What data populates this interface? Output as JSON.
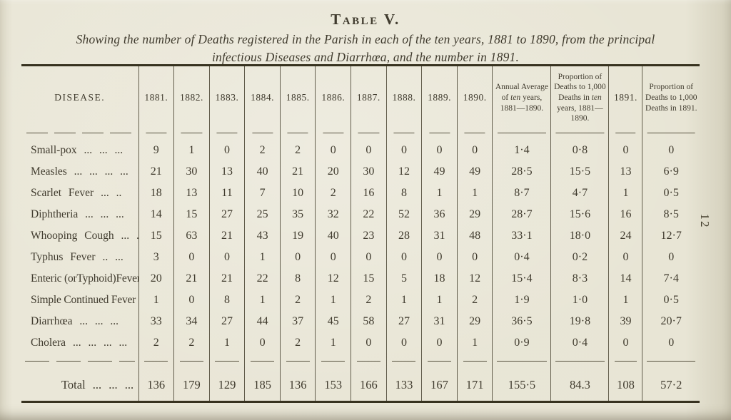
{
  "page_number": "12",
  "title": "Table V.",
  "subtitle": {
    "line1": "Showing the number of Deaths registered in the Parish in each of the ten years, 1881 to 1890, from the principal",
    "line2": "infectious Diseases and Diarrhœa, and the number in 1891."
  },
  "colors": {
    "paper": "#e8e5d5",
    "ink": "#403b2e",
    "rule": "#37321f"
  },
  "table": {
    "columns": [
      {
        "label": "DISEASE.",
        "type": "disease"
      },
      {
        "label": "1881.",
        "type": "year"
      },
      {
        "label": "1882.",
        "type": "year"
      },
      {
        "label": "1883.",
        "type": "year"
      },
      {
        "label": "1884.",
        "type": "year"
      },
      {
        "label": "1885.",
        "type": "year"
      },
      {
        "label": "1886.",
        "type": "year"
      },
      {
        "label": "1887.",
        "type": "year"
      },
      {
        "label": "1888.",
        "type": "year"
      },
      {
        "label": "1889.",
        "type": "year"
      },
      {
        "label": "1890.",
        "type": "year"
      },
      {
        "label": "Annual Average of ten years, 1881—1890.",
        "type": "avg"
      },
      {
        "label": "Proportion of Deaths to 1,000 Deaths in ten years, 1881—1890.",
        "type": "prop"
      },
      {
        "label": "1891.",
        "type": "y91"
      },
      {
        "label": "Proportion of Deaths to 1,000 Deaths in 1891.",
        "type": "prop91"
      }
    ],
    "rows": [
      {
        "label": "Small-pox",
        "leader": "... ... ...",
        "values": [
          "9",
          "1",
          "0",
          "2",
          "2",
          "0",
          "0",
          "0",
          "0",
          "0",
          "1·4",
          "0·8",
          "0",
          "0"
        ]
      },
      {
        "label": "Measles",
        "leader": "... ... ... ...",
        "values": [
          "21",
          "30",
          "13",
          "40",
          "21",
          "20",
          "30",
          "12",
          "49",
          "49",
          "28·5",
          "15·5",
          "13",
          "6·9"
        ]
      },
      {
        "label": "Scarlet Fever",
        "leader": "... ..",
        "values": [
          "18",
          "13",
          "11",
          "7",
          "10",
          "2",
          "16",
          "8",
          "1",
          "1",
          "8·7",
          "4·7",
          "1",
          "0·5"
        ]
      },
      {
        "label": "Diphtheria",
        "leader": "... ... ...",
        "values": [
          "14",
          "15",
          "27",
          "25",
          "35",
          "32",
          "22",
          "52",
          "36",
          "29",
          "28·7",
          "15·6",
          "16",
          "8·5"
        ]
      },
      {
        "label": "Whooping Cough",
        "leader": "... ...",
        "values": [
          "15",
          "63",
          "21",
          "43",
          "19",
          "40",
          "23",
          "28",
          "31",
          "48",
          "33·1",
          "18·0",
          "24",
          "12·7"
        ]
      },
      {
        "label": "Typhus Fever",
        "leader": ".. ...",
        "values": [
          "3",
          "0",
          "0",
          "1",
          "0",
          "0",
          "0",
          "0",
          "0",
          "0",
          "0·4",
          "0·2",
          "0",
          "0"
        ]
      },
      {
        "label": "Enteric (orTyphoid)Fever",
        "leader": "",
        "values": [
          "20",
          "21",
          "21",
          "22",
          "8",
          "12",
          "15",
          "5",
          "18",
          "12",
          "15·4",
          "8·3",
          "14",
          "7·4"
        ]
      },
      {
        "label": "Simple Continued Fever",
        "leader": "",
        "values": [
          "1",
          "0",
          "8",
          "1",
          "2",
          "1",
          "2",
          "1",
          "1",
          "2",
          "1·9",
          "1·0",
          "1",
          "0·5"
        ]
      },
      {
        "label": "Diarrhœa",
        "leader": "... ... ...",
        "values": [
          "33",
          "34",
          "27",
          "44",
          "37",
          "45",
          "58",
          "27",
          "31",
          "29",
          "36·5",
          "19·8",
          "39",
          "20·7"
        ]
      },
      {
        "label": "Cholera ...",
        "leader": "... ... ...",
        "values": [
          "2",
          "2",
          "1",
          "0",
          "2",
          "1",
          "0",
          "0",
          "0",
          "1",
          "0·9",
          "0·4",
          "0",
          "0"
        ]
      }
    ],
    "total_row": {
      "label": "Total",
      "leader": "... ... ...",
      "values": [
        "136",
        "179",
        "129",
        "185",
        "136",
        "153",
        "166",
        "133",
        "167",
        "171",
        "155·5",
        "84.3",
        "108",
        "57·2"
      ]
    }
  }
}
